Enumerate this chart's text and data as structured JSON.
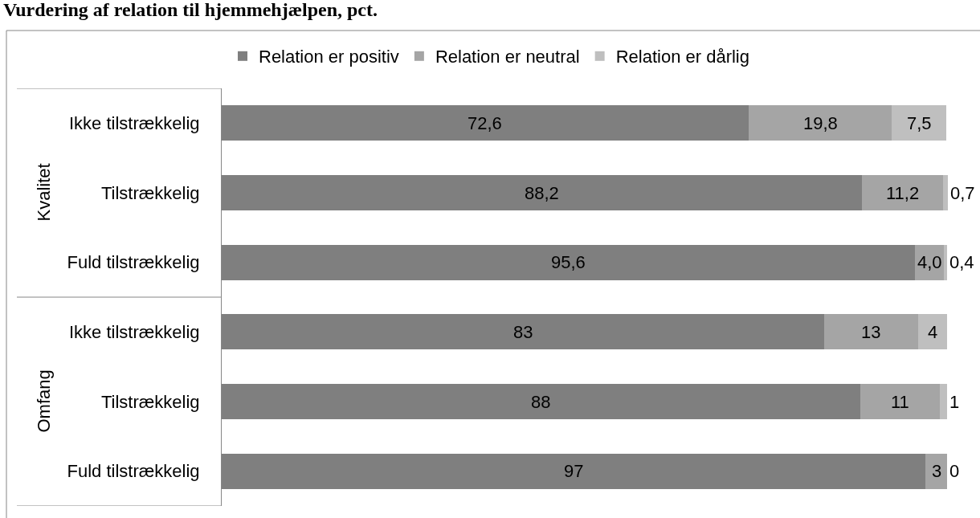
{
  "chart_data": {
    "type": "bar",
    "orientation": "horizontal",
    "stacked": true,
    "title": "Vurdering af relation til hjemmehjælpen, pct.",
    "categories": [
      "Ikke tilstrækkelig",
      "Tilstrækkelig",
      "Fuld tilstrækkelig",
      "Ikke tilstrækkelig",
      "Tilstrækkelig",
      "Fuld tilstrækkelig"
    ],
    "annotations": [
      "Kvalitet",
      "Omfang"
    ],
    "series": [
      {
        "name": "Relation er positiv",
        "color": "#7f7f7f",
        "values": [
          72.6,
          88.2,
          95.6,
          83,
          88,
          97
        ],
        "value_labels": [
          "72,6",
          "88,2",
          "95,6",
          "83",
          "88",
          "97"
        ]
      },
      {
        "name": "Relation er neutral",
        "color": "#a5a5a5",
        "values": [
          19.8,
          11.2,
          4.0,
          13,
          11,
          3
        ],
        "value_labels": [
          "19,8",
          "11,2",
          "4,0",
          "13",
          "11",
          "3"
        ]
      },
      {
        "name": "Relation er dårlig",
        "color": "#bfbfbf",
        "values": [
          7.5,
          0.7,
          0.4,
          4,
          1,
          0
        ],
        "value_labels": [
          "7,5",
          "0,7",
          "0,4",
          "4",
          "1",
          "0"
        ]
      }
    ],
    "xlim": [
      0,
      100.1
    ],
    "tick_labels": "y",
    "legend": "top"
  }
}
